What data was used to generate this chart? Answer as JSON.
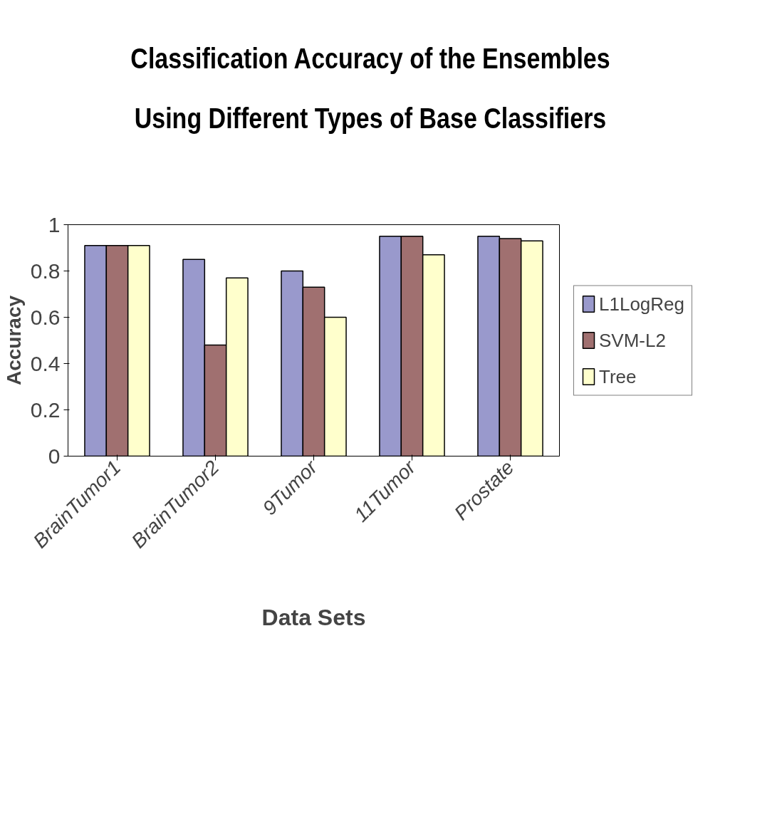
{
  "chart_data": {
    "type": "bar",
    "title": "Classification Accuracy of the Ensembles Using Different Types of Base Classifiers",
    "xlabel": "Data Sets",
    "ylabel": "Accuracy",
    "categories": [
      "BrainTumor1",
      "BrainTumor2",
      "9Tumor",
      "11Tumor",
      "Prostate"
    ],
    "series": [
      {
        "name": "L1LogReg",
        "color": "#9999cc",
        "values": [
          0.91,
          0.85,
          0.8,
          0.95,
          0.95
        ]
      },
      {
        "name": "SVM-L2",
        "color": "#a07070",
        "values": [
          0.91,
          0.48,
          0.73,
          0.95,
          0.94
        ]
      },
      {
        "name": "Tree",
        "color": "#ffffcc",
        "values": [
          0.91,
          0.77,
          0.6,
          0.87,
          0.93
        ]
      }
    ],
    "ylim": [
      0,
      1
    ],
    "yticks": [
      0,
      0.2,
      0.4,
      0.6,
      0.8,
      1
    ],
    "grid": false,
    "legend": "right"
  }
}
